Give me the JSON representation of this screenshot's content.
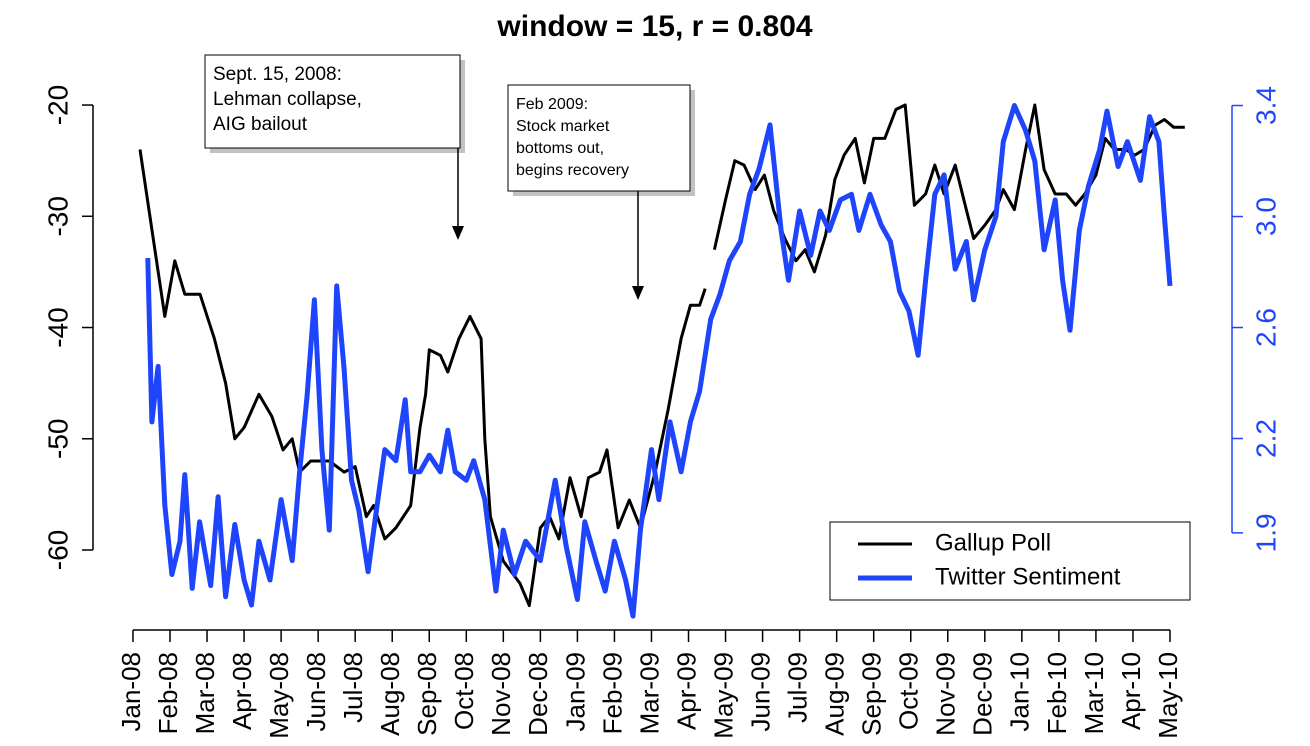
{
  "chart_data": {
    "type": "line",
    "title": "window = 15, r = 0.804",
    "xlim": [
      -0.89,
      28.81
    ],
    "xticks": [
      {
        "value": 0,
        "label": "Jan-08"
      },
      {
        "value": 1,
        "label": "Feb-08"
      },
      {
        "value": 2,
        "label": "Mar-08"
      },
      {
        "value": 3,
        "label": "Apr-08"
      },
      {
        "value": 4,
        "label": "May-08"
      },
      {
        "value": 5,
        "label": "Jun-08"
      },
      {
        "value": 6,
        "label": "Jul-08"
      },
      {
        "value": 7,
        "label": "Aug-08"
      },
      {
        "value": 8,
        "label": "Sep-08"
      },
      {
        "value": 9,
        "label": "Oct-08"
      },
      {
        "value": 10,
        "label": "Nov-08"
      },
      {
        "value": 11,
        "label": "Dec-08"
      },
      {
        "value": 12,
        "label": "Jan-09"
      },
      {
        "value": 13,
        "label": "Feb-09"
      },
      {
        "value": 14,
        "label": "Mar-09"
      },
      {
        "value": 15,
        "label": "Apr-09"
      },
      {
        "value": 16,
        "label": "May-09"
      },
      {
        "value": 17,
        "label": "Jun-09"
      },
      {
        "value": 18,
        "label": "Jul-09"
      },
      {
        "value": 19,
        "label": "Aug-09"
      },
      {
        "value": 20,
        "label": "Sep-09"
      },
      {
        "value": 21,
        "label": "Oct-09"
      },
      {
        "value": 22,
        "label": "Nov-09"
      },
      {
        "value": 23,
        "label": "Dec-09"
      },
      {
        "value": 24,
        "label": "Jan-10"
      },
      {
        "value": 25,
        "label": "Feb-10"
      },
      {
        "value": 26,
        "label": "Mar-10"
      },
      {
        "value": 27,
        "label": "Apr-10"
      },
      {
        "value": 28,
        "label": "May-10"
      }
    ],
    "ylim": [
      -67.19,
      -17.3
    ],
    "yticks": [
      -20,
      -30,
      -40,
      -50,
      -60
    ],
    "y2lim": [
      1.51,
      3.51
    ],
    "y2ticks": [
      {
        "value": 3.4,
        "label": "3.4"
      },
      {
        "value": 3.0,
        "label": "3.0"
      },
      {
        "value": 2.6,
        "label": "2.6"
      },
      {
        "value": 2.2,
        "label": "2.2"
      },
      {
        "value": 1.86,
        "label": "1.9"
      }
    ],
    "y2color": "#1f45fc",
    "legend": "bottom-right",
    "series": [
      {
        "name": "Gallup Poll",
        "color": "#000000",
        "x": [
          0.19,
          0.86,
          1.13,
          1.4,
          1.81,
          2.2,
          2.5,
          2.75,
          3.0,
          3.4,
          3.75,
          4.05,
          4.3,
          4.5,
          4.8,
          5.3,
          5.7,
          6.0,
          6.3,
          6.5,
          6.8,
          7.1,
          7.5,
          7.75,
          7.9,
          8.0,
          8.3,
          8.5,
          8.8,
          9.1,
          9.4,
          9.5,
          9.65,
          10.0,
          10.45,
          10.7,
          11.0,
          11.25,
          11.5,
          11.8,
          12.1,
          12.3,
          12.6,
          12.8,
          13.1,
          13.4,
          13.7,
          14.1,
          14.45,
          14.8,
          15.05,
          15.3,
          15.45,
          15.6,
          15.7,
          16.0,
          16.25,
          16.5,
          16.8,
          17.05,
          17.3,
          17.6,
          17.9,
          18.15,
          18.4,
          18.7,
          18.95,
          19.2,
          19.5,
          19.75,
          20.0,
          20.3,
          20.6,
          20.85,
          21.1,
          21.4,
          21.65,
          21.9,
          22.2,
          22.5,
          22.7,
          23.0,
          23.3,
          23.5,
          23.8,
          24.1,
          24.35,
          24.6,
          24.9,
          25.2,
          25.45,
          25.7,
          26.0,
          26.25,
          26.5,
          26.8,
          27.05,
          27.3,
          27.6,
          27.85,
          28.1,
          28.4
        ],
        "values": [
          -24,
          -39,
          -34,
          -37,
          -37,
          -41,
          -45,
          -50,
          -49,
          -46,
          -48,
          -51,
          -50,
          -53,
          -52,
          -52,
          -53,
          -52.5,
          -57,
          -56,
          -59,
          -58,
          -56,
          -49,
          -46,
          -42,
          -42.5,
          -44,
          -41,
          -39,
          -41,
          -50,
          -57,
          -61,
          -63,
          -65,
          -58,
          -57,
          -59,
          -53.5,
          -57,
          -53.5,
          -53,
          -51,
          -58,
          -55.5,
          -58,
          -53,
          -47.4,
          -41,
          -38,
          -38,
          -36.5,
          null,
          -33,
          -28.5,
          -25,
          -25.4,
          -27.6,
          -26.3,
          -29.5,
          -32,
          -34,
          -33,
          -35,
          -31.7,
          -26.7,
          -24.5,
          -23,
          -27,
          -23,
          -23,
          -20.4,
          -20,
          -29,
          -28,
          -25.4,
          -28,
          -25.4,
          -29.4,
          -32,
          -30.8,
          -29.4,
          -27.6,
          -29.4,
          -24,
          -20,
          -25.8,
          -28,
          -28,
          -29,
          -28,
          -26.3,
          -23,
          -24,
          -24,
          -24.5,
          -24,
          -21.8,
          -21.3,
          -22,
          -22
        ]
      },
      {
        "name": "Twitter Sentiment",
        "color": "#1f45fc",
        "axis": "y2",
        "x": [
          0.4,
          0.51,
          0.68,
          0.86,
          1.05,
          1.27,
          1.4,
          1.6,
          1.8,
          2.1,
          2.3,
          2.5,
          2.75,
          3.0,
          3.2,
          3.4,
          3.7,
          4.0,
          4.3,
          4.5,
          4.7,
          4.9,
          5.1,
          5.3,
          5.5,
          5.7,
          5.9,
          6.1,
          6.35,
          6.55,
          6.8,
          7.1,
          7.35,
          7.5,
          7.75,
          8.0,
          8.3,
          8.5,
          8.7,
          9.0,
          9.2,
          9.5,
          9.8,
          10.0,
          10.3,
          10.6,
          11.0,
          11.4,
          11.7,
          12.0,
          12.2,
          12.5,
          12.75,
          13.0,
          13.3,
          13.5,
          13.7,
          14.0,
          14.2,
          14.5,
          14.8,
          15.05,
          15.3,
          15.6,
          15.85,
          16.1,
          16.4,
          16.65,
          16.9,
          17.2,
          17.5,
          17.7,
          18.0,
          18.3,
          18.55,
          18.8,
          19.1,
          19.4,
          19.6,
          19.9,
          20.2,
          20.45,
          20.7,
          20.95,
          21.2,
          21.4,
          21.65,
          21.9,
          22.2,
          22.5,
          22.7,
          23.0,
          23.3,
          23.5,
          23.8,
          24.1,
          24.35,
          24.6,
          24.9,
          25.1,
          25.3,
          25.55,
          25.8,
          26.1,
          26.3,
          26.6,
          26.85,
          27.2,
          27.45,
          27.7,
          27.85,
          28.0
        ],
        "values": [
          2.85,
          2.26,
          2.46,
          1.96,
          1.71,
          1.83,
          2.07,
          1.66,
          1.9,
          1.67,
          1.99,
          1.63,
          1.89,
          1.69,
          1.6,
          1.83,
          1.69,
          1.98,
          1.76,
          2.08,
          2.35,
          2.7,
          2.16,
          1.87,
          2.75,
          2.45,
          2.05,
          1.94,
          1.72,
          1.92,
          2.16,
          2.12,
          2.34,
          2.08,
          2.08,
          2.14,
          2.08,
          2.23,
          2.08,
          2.05,
          2.12,
          1.98,
          1.65,
          1.87,
          1.71,
          1.83,
          1.76,
          2.05,
          1.81,
          1.62,
          1.9,
          1.76,
          1.65,
          1.83,
          1.69,
          1.56,
          1.87,
          2.16,
          1.98,
          2.26,
          2.08,
          2.26,
          2.37,
          2.63,
          2.72,
          2.84,
          2.91,
          3.08,
          3.17,
          3.33,
          2.95,
          2.77,
          3.02,
          2.86,
          3.02,
          2.95,
          3.06,
          3.08,
          2.95,
          3.08,
          2.97,
          2.91,
          2.73,
          2.66,
          2.5,
          2.77,
          3.08,
          3.15,
          2.81,
          2.91,
          2.7,
          2.88,
          3.0,
          3.27,
          3.4,
          3.31,
          3.2,
          2.88,
          3.06,
          2.77,
          2.59,
          2.95,
          3.11,
          3.24,
          3.38,
          3.18,
          3.27,
          3.13,
          3.36,
          3.27,
          3.0,
          2.75
        ]
      }
    ],
    "annotations": [
      {
        "lines": [
          "Sept. 15, 2008:",
          "Lehman collapse,",
          "AIG bailout"
        ]
      },
      {
        "lines": [
          "Feb 2009:",
          "Stock market",
          "bottoms out,",
          "begins recovery"
        ]
      }
    ]
  }
}
